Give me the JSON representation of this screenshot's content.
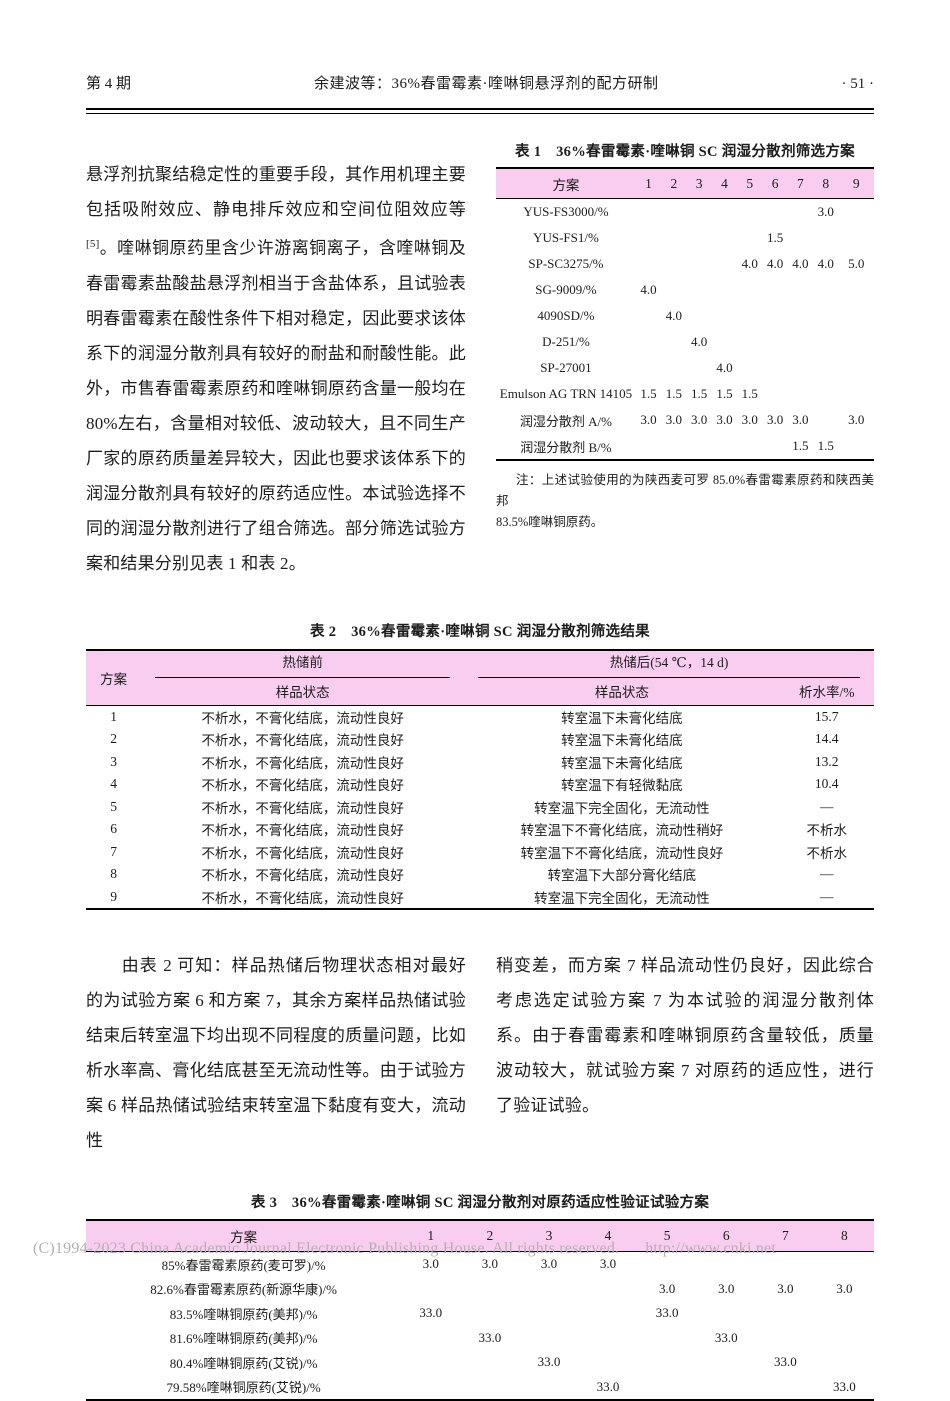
{
  "colors": {
    "table_header_pink": "#f9cdef",
    "footer_gray": "#b3b1b1"
  },
  "header": {
    "issue": "第 4 期",
    "running_title": "余建波等：36%春雷霉素·喹啉铜悬浮剂的配方研制",
    "page_no": "· 51 ·"
  },
  "intro_paragraph": {
    "seg1": "悬浮剂抗聚结稳定性的重要手段，其作用机理主要包括吸附效应、静电排斥效应和空间位阻效应等",
    "sup": "[5]",
    "seg2": "。喹啉铜原药里含少许游离铜离子，含喹啉铜及春雷霉素盐酸盐悬浮剂相当于含盐体系，且试验表明春雷霉素在酸性条件下相对稳定，因此要求该体系下的润湿分散剂具有较好的耐盐和耐酸性能。此外，市售春雷霉素原药和喹啉铜原药含量一般均在 80%左右，含量相对较低、波动较大，且不同生产厂家的原药质量差异较大，因此也要求该体系下的润湿分散剂具有较好的原药适应性。本试验选择不同的润湿分散剂进行了组合筛选。部分筛选试验方案和结果分别见表 1 和表 2。"
  },
  "table1": {
    "title": "表 1　36%春雷霉素·喹啉铜 SC 润湿分散剂筛选方案",
    "header": [
      "方案",
      "1",
      "2",
      "3",
      "4",
      "5",
      "6",
      "7",
      "8",
      "9"
    ],
    "rows": [
      {
        "label": "YUS-FS3000/%",
        "values": [
          "",
          "",
          "",
          "",
          "",
          "",
          "",
          "3.0",
          ""
        ]
      },
      {
        "label": "YUS-FS1/%",
        "values": [
          "",
          "",
          "",
          "",
          "",
          "1.5",
          "",
          "",
          ""
        ]
      },
      {
        "label": "SP-SC3275/%",
        "values": [
          "",
          "",
          "",
          "",
          "4.0",
          "4.0",
          "4.0",
          "4.0",
          "5.0"
        ]
      },
      {
        "label": "SG-9009/%",
        "values": [
          "4.0",
          "",
          "",
          "",
          "",
          "",
          "",
          "",
          ""
        ]
      },
      {
        "label": "4090SD/%",
        "values": [
          "",
          "4.0",
          "",
          "",
          "",
          "",
          "",
          "",
          ""
        ]
      },
      {
        "label": "D-251/%",
        "values": [
          "",
          "",
          "4.0",
          "",
          "",
          "",
          "",
          "",
          ""
        ]
      },
      {
        "label": "SP-27001",
        "values": [
          "",
          "",
          "",
          "4.0",
          "",
          "",
          "",
          "",
          ""
        ]
      },
      {
        "label": "Emulson AG TRN 14105",
        "values": [
          "1.5",
          "1.5",
          "1.5",
          "1.5",
          "1.5",
          "",
          "",
          "",
          ""
        ]
      },
      {
        "label": "润湿分散剂 A/%",
        "values": [
          "3.0",
          "3.0",
          "3.0",
          "3.0",
          "3.0",
          "3.0",
          "3.0",
          "",
          "3.0"
        ]
      },
      {
        "label": "润湿分散剂 B/%",
        "values": [
          "",
          "",
          "",
          "",
          "",
          "",
          "1.5",
          "1.5",
          ""
        ]
      }
    ],
    "note_line1": "注：上述试验使用的为陕西麦可罗 85.0%春雷霉素原药和陕西美邦",
    "note_line2": "83.5%喹啉铜原药。"
  },
  "table2": {
    "title": "表 2　36%春雷霉素·喹啉铜 SC 润湿分散剂筛选结果",
    "col_scheme": "方案",
    "group_before": "热储前",
    "group_after": "热储后(54 ℃，14 d)",
    "sub_sample_before": "样品状态",
    "sub_sample_after": "样品状态",
    "sub_water": "析水率/%",
    "rows": [
      [
        "1",
        "不析水，不膏化结底，流动性良好",
        "转室温下未膏化结底",
        "15.7"
      ],
      [
        "2",
        "不析水，不膏化结底，流动性良好",
        "转室温下未膏化结底",
        "14.4"
      ],
      [
        "3",
        "不析水，不膏化结底，流动性良好",
        "转室温下未膏化结底",
        "13.2"
      ],
      [
        "4",
        "不析水，不膏化结底，流动性良好",
        "转室温下有轻微黏底",
        "10.4"
      ],
      [
        "5",
        "不析水，不膏化结底，流动性良好",
        "转室温下完全固化，无流动性",
        "—"
      ],
      [
        "6",
        "不析水，不膏化结底，流动性良好",
        "转室温下不膏化结底，流动性稍好",
        "不析水"
      ],
      [
        "7",
        "不析水，不膏化结底，流动性良好",
        "转室温下不膏化结底，流动性良好",
        "不析水"
      ],
      [
        "8",
        "不析水，不膏化结底，流动性良好",
        "转室温下大部分膏化结底",
        "—"
      ],
      [
        "9",
        "不析水，不膏化结底，流动性良好",
        "转室温下完全固化，无流动性",
        "—"
      ]
    ]
  },
  "body_paragraph": {
    "left": "由表 2 可知：样品热储后物理状态相对最好的为试验方案 6 和方案 7，其余方案样品热储试验结束后转室温下均出现不同程度的质量问题，比如析水率高、膏化结底甚至无流动性等。由于试验方案 6 样品热储试验结束转室温下黏度有变大，流动性",
    "right": "稍变差，而方案 7 样品流动性仍良好，因此综合考虑选定试验方案 7 为本试验的润湿分散剂体系。由于春雷霉素和喹啉铜原药含量较低，质量波动较大，就试验方案 7 对原药的适应性，进行了验证试验。"
  },
  "table3": {
    "title": "表 3　36%春雷霉素·喹啉铜 SC 润湿分散剂对原药适应性验证试验方案",
    "header": [
      "方案",
      "1",
      "2",
      "3",
      "4",
      "5",
      "6",
      "7",
      "8"
    ],
    "rows": [
      {
        "label": "85%春雷霉素原药(麦可罗)/%",
        "values": [
          "3.0",
          "3.0",
          "3.0",
          "3.0",
          "",
          "",
          "",
          ""
        ]
      },
      {
        "label": "82.6%春雷霉素原药(新源华康)/%",
        "values": [
          "",
          "",
          "",
          "",
          "3.0",
          "3.0",
          "3.0",
          "3.0"
        ]
      },
      {
        "label": "83.5%喹啉铜原药(美邦)/%",
        "values": [
          "33.0",
          "",
          "",
          "",
          "33.0",
          "",
          "",
          ""
        ]
      },
      {
        "label": "81.6%喹啉铜原药(美邦)/%",
        "values": [
          "",
          "33.0",
          "",
          "",
          "",
          "33.0",
          "",
          ""
        ]
      },
      {
        "label": "80.4%喹啉铜原药(艾锐)/%",
        "values": [
          "",
          "",
          "33.0",
          "",
          "",
          "",
          "33.0",
          ""
        ]
      },
      {
        "label": "79.58%喹啉铜原药(艾锐)/%",
        "values": [
          "",
          "",
          "",
          "33.0",
          "",
          "",
          "",
          "33.0"
        ]
      }
    ]
  },
  "footer": {
    "copyright": "(C)1994-2023 China Academic Journal Electronic Publishing House. All rights reserved.",
    "url": "http://www.cnki.net"
  }
}
